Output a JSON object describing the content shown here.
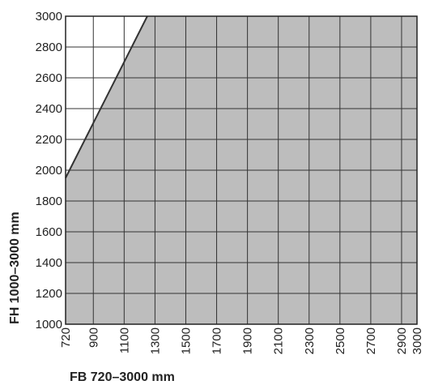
{
  "chart_data": {
    "type": "area",
    "title": "",
    "xlabel": "FB 720–3000 mm",
    "ylabel": "FH 1000–3000 mm",
    "xlim": [
      720,
      3000
    ],
    "ylim": [
      1000,
      3000
    ],
    "x_ticks": [
      "720",
      "900",
      "1100",
      "1300",
      "1500",
      "1700",
      "1900",
      "2100",
      "2300",
      "2500",
      "2700",
      "2900",
      "3000"
    ],
    "y_ticks": [
      "1000",
      "1200",
      "1400",
      "1600",
      "1800",
      "2000",
      "2200",
      "2400",
      "2600",
      "2800",
      "3000"
    ],
    "grid": true,
    "fill_color": "#bdbdbd",
    "boundary": {
      "name": "",
      "x": [
        720,
        1250
      ],
      "y": [
        1950,
        3000
      ]
    },
    "region": {
      "x": [
        720,
        1250,
        3000,
        3000,
        720
      ],
      "y": [
        1950,
        3000,
        3000,
        1000,
        1000
      ]
    }
  }
}
